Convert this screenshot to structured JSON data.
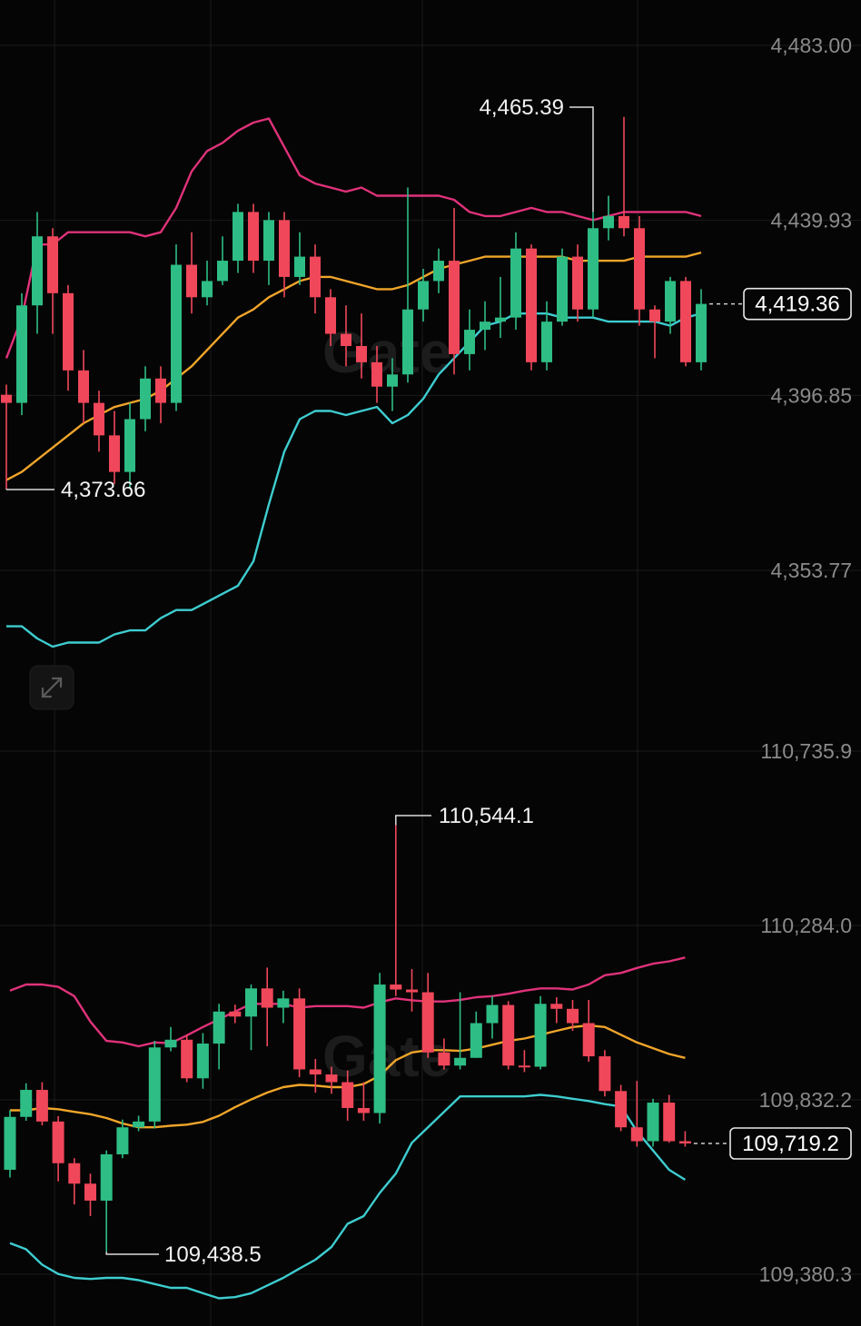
{
  "colors": {
    "up": "#2ebd85",
    "down": "#f0475a",
    "upper": "#e0327a",
    "middle": "#f0a52a",
    "lower": "#3ecdd0",
    "grid": "#1b1b1b",
    "axis_text": "#8a8a8a"
  },
  "watermark": "Gate",
  "expand_icon": "expand-arrows-icon",
  "chart_data": [
    {
      "type": "candlestick",
      "y_ticks": [
        "4,483.00",
        "4,439.93",
        "4,396.85",
        "4,353.77"
      ],
      "y_tick_values": [
        4483.0,
        4439.93,
        4396.85,
        4353.77
      ],
      "ylim": [
        4327.3,
        4488.5
      ],
      "high_label": "4,465.39",
      "low_label": "4,373.66",
      "current_label": "4,419.36",
      "current_value": 4419.36,
      "high_index": 38,
      "low_index": 0,
      "candles": [
        [
          4397.0,
          4395.0,
          4399.5,
          4373.66
        ],
        [
          4395.0,
          4419.0,
          4422.0,
          4392.0
        ],
        [
          4419.0,
          4436.0,
          4442.0,
          4412.0
        ],
        [
          4436.0,
          4422.0,
          4438.0,
          4412.0
        ],
        [
          4422.0,
          4403.0,
          4424.0,
          4398.0
        ],
        [
          4403.0,
          4395.0,
          4408.0,
          4390.0
        ],
        [
          4395.0,
          4387.0,
          4398.0,
          4383.0
        ],
        [
          4387.0,
          4378.0,
          4393.0,
          4375.0
        ],
        [
          4378.0,
          4391.0,
          4395.0,
          4374.0
        ],
        [
          4391.0,
          4401.0,
          4404.0,
          4388.0
        ],
        [
          4401.0,
          4395.0,
          4404.0,
          4390.0
        ],
        [
          4395.0,
          4429.0,
          4434.0,
          4393.0
        ],
        [
          4429.0,
          4421.0,
          4437.0,
          4417.0
        ],
        [
          4421.0,
          4425.0,
          4430.0,
          4419.0
        ],
        [
          4425.0,
          4430.0,
          4436.0,
          4424.0
        ],
        [
          4430.0,
          4442.0,
          4444.0,
          4427.0
        ],
        [
          4442.0,
          4430.0,
          4444.0,
          4427.0
        ],
        [
          4430.0,
          4440.0,
          4442.0,
          4424.0
        ],
        [
          4440.0,
          4426.0,
          4442.0,
          4421.0
        ],
        [
          4426.0,
          4431.0,
          4437.0,
          4424.0
        ],
        [
          4431.0,
          4421.0,
          4434.0,
          4417.0
        ],
        [
          4421.0,
          4412.0,
          4423.0,
          4409.0
        ],
        [
          4412.0,
          4409.0,
          4419.0,
          4404.0
        ],
        [
          4409.0,
          4405.0,
          4417.0,
          4401.0
        ],
        [
          4405.0,
          4399.0,
          4409.0,
          4395.0
        ],
        [
          4399.0,
          4402.0,
          4406.0,
          4393.0
        ],
        [
          4402.0,
          4418.0,
          4448.0,
          4400.0
        ],
        [
          4418.0,
          4425.0,
          4428.0,
          4415.0
        ],
        [
          4425.0,
          4430.0,
          4433.0,
          4422.0
        ],
        [
          4430.0,
          4407.0,
          4443.0,
          4402.0
        ],
        [
          4407.0,
          4413.0,
          4418.0,
          4403.0
        ],
        [
          4413.0,
          4415.0,
          4420.0,
          4408.0
        ],
        [
          4415.0,
          4416.0,
          4426.0,
          4411.0
        ],
        [
          4416.0,
          4433.0,
          4437.0,
          4413.0
        ],
        [
          4433.0,
          4405.0,
          4434.0,
          4403.0
        ],
        [
          4405.0,
          4415.0,
          4420.0,
          4403.0
        ],
        [
          4415.0,
          4431.0,
          4433.0,
          4414.0
        ],
        [
          4431.0,
          4418.0,
          4434.0,
          4415.0
        ],
        [
          4418.0,
          4438.0,
          4442.0,
          4416.0
        ],
        [
          4438.0,
          4441.0,
          4446.0,
          4435.0
        ],
        [
          4441.0,
          4438.0,
          4465.39,
          4436.0
        ],
        [
          4438.0,
          4418.0,
          4441.0,
          4414.0
        ],
        [
          4418.0,
          4415.0,
          4419.0,
          4406.0
        ],
        [
          4415.0,
          4425.0,
          4426.0,
          4412.0
        ],
        [
          4425.0,
          4405.0,
          4426.0,
          4404.0
        ],
        [
          4405.0,
          4419.36,
          4423.0,
          4403.0
        ]
      ],
      "upper": [
        4406,
        4416,
        4434,
        4434,
        4437,
        4437,
        4437,
        4437,
        4437,
        4436,
        4437,
        4443,
        4452,
        4457,
        4459,
        4462,
        4464,
        4465,
        4458,
        4451,
        4449,
        4448,
        4447,
        4448,
        4446,
        4446,
        4446,
        4446,
        4446,
        4445,
        4442,
        4441,
        4441,
        4442,
        4443,
        4442,
        4442,
        4441,
        4440,
        4441,
        4442,
        4442,
        4442,
        4442,
        4442,
        4441
      ],
      "middle": [
        4376,
        4378,
        4381,
        4384,
        4387,
        4390,
        4392,
        4394,
        4395,
        4396,
        4398,
        4401,
        4404,
        4408,
        4412,
        4416,
        4418,
        4421,
        4423,
        4425,
        4426,
        4426,
        4425,
        4424,
        4423,
        4423,
        4424,
        4426,
        4428,
        4429,
        4430,
        4431,
        4431,
        4431,
        4431,
        4431,
        4431,
        4430,
        4430,
        4430,
        4430,
        4431,
        4431,
        4431,
        4431,
        4432
      ],
      "lower": [
        4340,
        4340,
        4337,
        4335,
        4336,
        4336,
        4336,
        4338,
        4339,
        4339,
        4342,
        4344,
        4344,
        4346,
        4348,
        4350,
        4356,
        4370,
        4383,
        4391,
        4393,
        4393,
        4392,
        4393,
        4394,
        4390,
        4392,
        4396,
        4402,
        4406,
        4410,
        4414,
        4415,
        4417,
        4417,
        4417,
        4416,
        4416,
        4416,
        4415,
        4415,
        4415,
        4415,
        4414,
        4416,
        4417
      ]
    },
    {
      "type": "candlestick",
      "y_ticks": [
        "110,735.9",
        "110,284.0",
        "109,832.2",
        "109,380.3"
      ],
      "y_tick_values": [
        110735.9,
        110284.0,
        109832.2,
        109380.3
      ],
      "ylim": [
        109240.0,
        110775.0
      ],
      "high_label": "110,544.1",
      "low_label": "109,438.5",
      "current_label": "109,719.2",
      "current_value": 109719.2,
      "high_index": 24,
      "low_index": 6,
      "candles": [
        [
          109651.0,
          109788.0,
          109805.0,
          109631.0
        ],
        [
          109788.0,
          109858.0,
          109875.0,
          109778.0
        ],
        [
          109858.0,
          109776.0,
          109878.0,
          109766.0
        ],
        [
          109776.0,
          109668.0,
          109790.0,
          109621.0
        ],
        [
          109668.0,
          109615.0,
          109681.0,
          109561.0
        ],
        [
          109615.0,
          109571.0,
          109641.0,
          109531.0
        ],
        [
          109571.0,
          109691.0,
          109701.0,
          109438.5
        ],
        [
          109691.0,
          109761.0,
          109781.0,
          109681.0
        ],
        [
          109761.0,
          109776.0,
          109791.0,
          109751.0
        ],
        [
          109776.0,
          109968.0,
          109985.0,
          109758.0
        ],
        [
          109968.0,
          109988.0,
          110021.0,
          109958.0
        ],
        [
          109988.0,
          109888.0,
          110001.0,
          109878.0
        ],
        [
          109888.0,
          109978.0,
          110005.0,
          109861.0
        ],
        [
          109978.0,
          110061.0,
          110081.0,
          109911.0
        ],
        [
          110061.0,
          110048.0,
          110079.0,
          110031.0
        ],
        [
          110048.0,
          110121.0,
          110131.0,
          109961.0
        ],
        [
          110121.0,
          110071.0,
          110175.0,
          109971.0
        ],
        [
          110071.0,
          110095.0,
          110115.0,
          110031.0
        ],
        [
          110095.0,
          109911.0,
          110121.0,
          109891.0
        ],
        [
          109911.0,
          109898.0,
          109938.0,
          109851.0
        ],
        [
          109898.0,
          109878.0,
          109918.0,
          109848.0
        ],
        [
          109878.0,
          109811.0,
          109908.0,
          109778.0
        ],
        [
          109811.0,
          109798.0,
          109878.0,
          109778.0
        ],
        [
          109798.0,
          110131.0,
          110161.0,
          109771.0
        ],
        [
          110131.0,
          110118.0,
          110544.1,
          110101.0
        ],
        [
          110118.0,
          110111.0,
          110171.0,
          110061.0
        ],
        [
          110111.0,
          109955.0,
          110161.0,
          109941.0
        ],
        [
          109955.0,
          109921.0,
          109991.0,
          109911.0
        ],
        [
          109921.0,
          109941.0,
          110111.0,
          109911.0
        ],
        [
          109941.0,
          110031.0,
          110061.0,
          109941.0
        ],
        [
          110031.0,
          110078.0,
          110101.0,
          109991.0
        ],
        [
          110078.0,
          109921.0,
          110088.0,
          109911.0
        ],
        [
          109921.0,
          109918.0,
          109961.0,
          109904.0
        ],
        [
          109918.0,
          110081.0,
          110101.0,
          109911.0
        ],
        [
          110081.0,
          110068.0,
          110098.0,
          110031.0
        ],
        [
          110068.0,
          110031.0,
          110091.0,
          110011.0
        ],
        [
          110031.0,
          109945.0,
          110091.0,
          109931.0
        ],
        [
          109945.0,
          109855.0,
          109961.0,
          109841.0
        ],
        [
          109855.0,
          109761.0,
          109871.0,
          109751.0
        ],
        [
          109761.0,
          109725.0,
          109881.0,
          109711.0
        ],
        [
          109725.0,
          109825.0,
          109835.0,
          109711.0
        ],
        [
          109825.0,
          109725.0,
          109845.0,
          109721.0
        ],
        [
          109725.0,
          109719.2,
          109751.0,
          109711.0
        ]
      ],
      "upper": [
        110115,
        110131,
        110131,
        110125,
        110101,
        110035,
        109985,
        109981,
        109971,
        109981,
        109979,
        109999,
        110021,
        110041,
        110061,
        110081,
        110081,
        110081,
        110071,
        110075,
        110075,
        110075,
        110071,
        110085,
        110095,
        110090,
        110087,
        110087,
        110091,
        110098,
        110101,
        110107,
        110115,
        110121,
        110121,
        110118,
        110131,
        110155,
        110161,
        110174,
        110185,
        110191,
        110201
      ],
      "middle": [
        109805,
        109805,
        109811,
        109808,
        109801,
        109795,
        109785,
        109771,
        109761,
        109761,
        109765,
        109768,
        109775,
        109791,
        109813,
        109833,
        109851,
        109865,
        109871,
        109869,
        109865,
        109865,
        109873,
        109895,
        109935,
        109955,
        109961,
        109961,
        109959,
        109965,
        109975,
        109985,
        109991,
        110001,
        110011,
        110021,
        110025,
        110021,
        110001,
        109981,
        109966,
        109951,
        109941
      ],
      "lower": [
        109461,
        109445,
        109405,
        109381,
        109371,
        109368,
        109371,
        109371,
        109365,
        109355,
        109345,
        109345,
        109331,
        109318,
        109321,
        109331,
        109351,
        109371,
        109395,
        109418,
        109451,
        109511,
        109531,
        109591,
        109641,
        109721,
        109761,
        109801,
        109841,
        109841,
        109841,
        109841,
        109841,
        109845,
        109841,
        109835,
        109829,
        109821,
        109815,
        109751,
        109701,
        109651,
        109625
      ]
    }
  ]
}
